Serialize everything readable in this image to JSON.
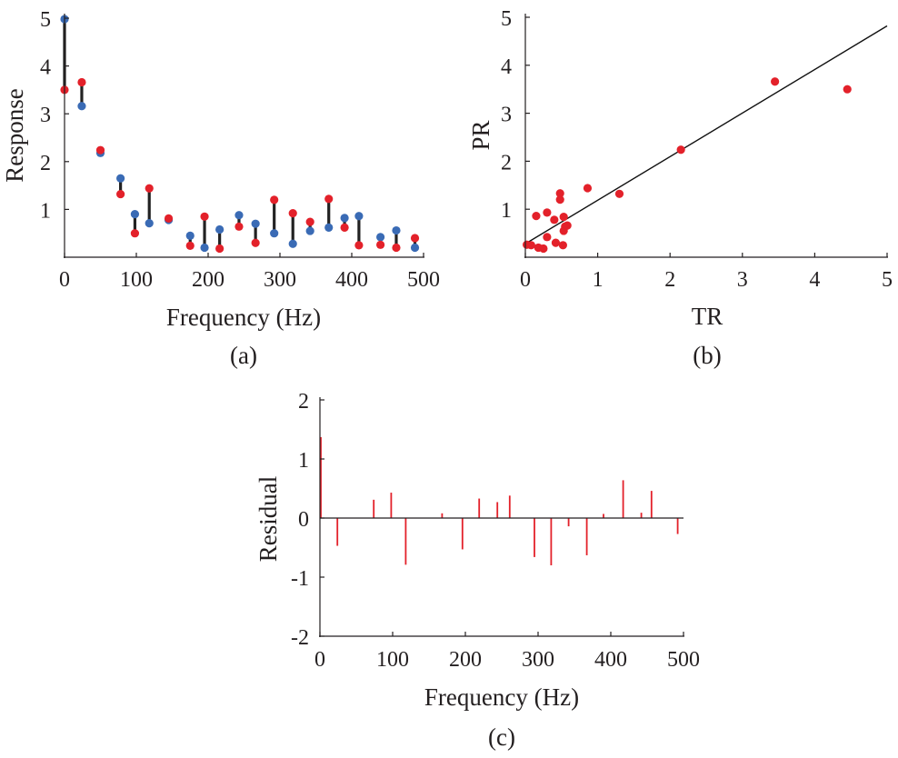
{
  "chart_data": [
    {
      "panel": "a",
      "type": "scatter",
      "caption": "(a)",
      "xlabel": "Frequency (Hz)",
      "ylabel": "Response",
      "xlim": [
        0,
        500
      ],
      "ylim": [
        0,
        5
      ],
      "xticks": [
        "0",
        "100",
        "200",
        "300",
        "400",
        "500"
      ],
      "yticks": [
        "1",
        "2",
        "3",
        "4",
        "5"
      ],
      "colors": {
        "blue": "#3a6bb5",
        "red": "#e3212a",
        "stem": "#222222"
      },
      "x": [
        0,
        24,
        50,
        78,
        98,
        118,
        145,
        175,
        195,
        216,
        243,
        266,
        292,
        318,
        342,
        368,
        390,
        410,
        440,
        462,
        488
      ],
      "blue": [
        4.98,
        3.16,
        2.18,
        1.65,
        0.9,
        0.71,
        0.78,
        0.45,
        0.2,
        0.58,
        0.88,
        0.7,
        0.5,
        0.28,
        0.55,
        0.62,
        0.82,
        0.86,
        0.42,
        0.56,
        0.2
      ],
      "red": [
        3.5,
        3.66,
        2.24,
        1.32,
        0.5,
        1.44,
        0.81,
        0.24,
        0.85,
        0.18,
        0.64,
        0.3,
        1.2,
        0.92,
        0.74,
        1.22,
        0.62,
        0.25,
        0.26,
        0.2,
        0.4
      ]
    },
    {
      "panel": "b",
      "type": "scatter",
      "caption": "(b)",
      "xlabel": "TR",
      "ylabel": "PR",
      "xlim": [
        0,
        5
      ],
      "ylim": [
        0,
        5
      ],
      "xticks": [
        "0",
        "1",
        "2",
        "3",
        "4",
        "5"
      ],
      "yticks": [
        "1",
        "2",
        "3",
        "4",
        "5"
      ],
      "fit_line": [
        [
          0,
          0.28
        ],
        [
          5,
          4.82
        ]
      ],
      "points": [
        [
          0.02,
          0.26
        ],
        [
          0.08,
          0.25
        ],
        [
          0.15,
          0.86
        ],
        [
          0.18,
          0.2
        ],
        [
          0.25,
          0.18
        ],
        [
          0.3,
          0.42
        ],
        [
          0.3,
          0.93
        ],
        [
          0.4,
          0.78
        ],
        [
          0.42,
          0.3
        ],
        [
          0.48,
          1.2
        ],
        [
          0.48,
          1.33
        ],
        [
          0.52,
          0.25
        ],
        [
          0.53,
          0.55
        ],
        [
          0.53,
          0.84
        ],
        [
          0.55,
          0.64
        ],
        [
          0.58,
          0.66
        ],
        [
          0.86,
          1.44
        ],
        [
          1.3,
          1.32
        ],
        [
          2.15,
          2.24
        ],
        [
          3.45,
          3.66
        ],
        [
          4.45,
          3.5
        ]
      ]
    },
    {
      "panel": "c",
      "type": "bar",
      "caption": "(c)",
      "xlabel": "Frequency (Hz)",
      "ylabel": "Residual",
      "xlim": [
        0,
        500
      ],
      "ylim": [
        -2,
        2
      ],
      "xticks": [
        "0",
        "100",
        "200",
        "300",
        "400",
        "500"
      ],
      "yticks": [
        "-2",
        "-1",
        "0",
        "1",
        "2"
      ],
      "color": "#e3212a",
      "x": [
        0,
        24,
        74,
        98,
        118,
        168,
        196,
        219,
        244,
        261,
        295,
        318,
        342,
        367,
        390,
        417,
        442,
        456,
        492
      ],
      "values": [
        1.37,
        -0.47,
        0.31,
        0.43,
        -0.79,
        0.08,
        -0.53,
        0.33,
        0.27,
        0.38,
        -0.66,
        -0.8,
        -0.14,
        -0.63,
        0.07,
        0.64,
        0.09,
        0.46,
        -0.27
      ]
    }
  ]
}
